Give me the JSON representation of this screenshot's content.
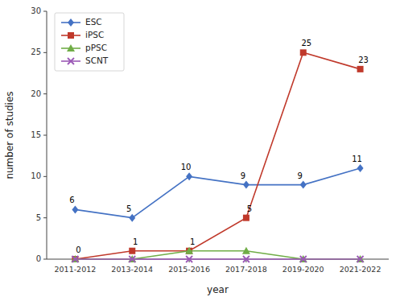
{
  "chart_data": {
    "type": "line",
    "x_label": "year",
    "y_label": "number of studies",
    "categories": [
      "2011-2012",
      "2013-2014",
      "2015-2016",
      "2017-2018",
      "2019-2020",
      "2021-2022"
    ],
    "series": [
      {
        "name": "ESC",
        "color": "#4472C4",
        "marker": "diamond",
        "line_style": "solid",
        "data_labels": true,
        "values": [
          6,
          5,
          10,
          9,
          9,
          11
        ]
      },
      {
        "name": "iPSC",
        "color": "#C0392B",
        "marker": "square",
        "line_style": "solid",
        "data_labels": true,
        "values": [
          0,
          1,
          1,
          5,
          25,
          23
        ]
      },
      {
        "name": "pPSC",
        "color": "#70AD47",
        "marker": "triangle",
        "line_style": "solid",
        "data_labels": false,
        "values": [
          0,
          0,
          1,
          1,
          0,
          0
        ]
      },
      {
        "name": "SCNT",
        "color": "#9B59B6",
        "marker": "x",
        "line_style": "solid",
        "data_labels": false,
        "values": [
          0,
          0,
          0,
          0,
          0,
          0
        ]
      }
    ],
    "ylim": [
      0,
      30
    ],
    "yticks": [
      0,
      5,
      10,
      15,
      20,
      25,
      30
    ],
    "grid": false,
    "legend": "upper left"
  }
}
